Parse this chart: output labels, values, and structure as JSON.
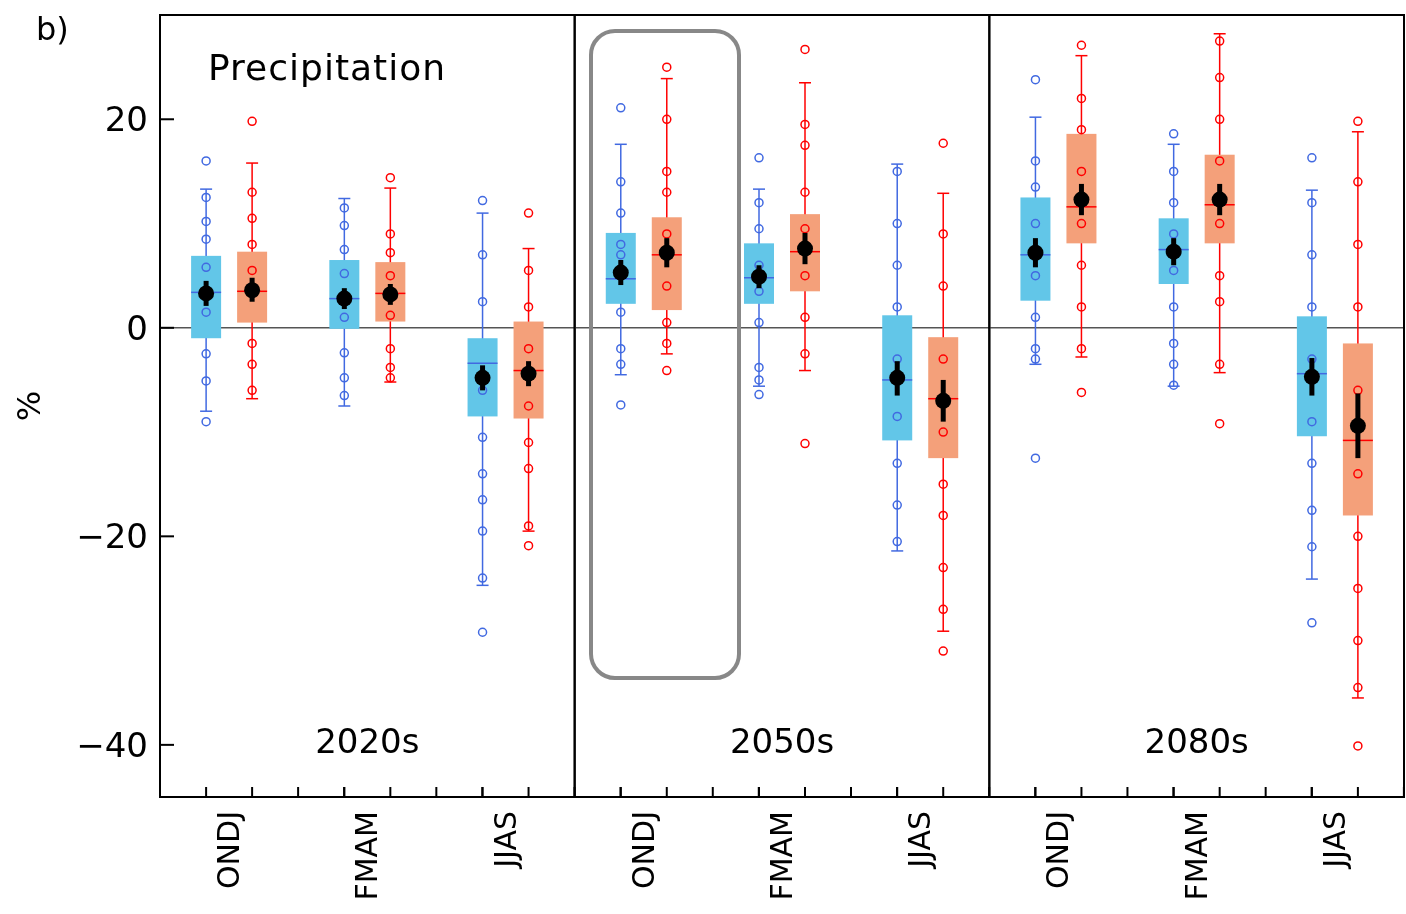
{
  "chart_data": [
    {
      "type": "box",
      "title": "2020s",
      "ylabel": "%",
      "annotations": [
        "b)",
        "Precipitation"
      ],
      "categories": [
        "ONDJ",
        "FMAM",
        "JJAS"
      ],
      "ylim": [
        -45,
        30
      ],
      "yticks": [
        -40,
        -20,
        0,
        20
      ],
      "ref_lines": [
        {
          "axis": "y",
          "value": 0,
          "color": "#555555"
        }
      ],
      "grid": false,
      "marker": "circle",
      "series": [
        {
          "color": "#4169e1",
          "colors": [
            "#62c6e8",
            "#62c6e8",
            "#62c6e8"
          ],
          "boxes": [
            {
              "low": -8.0,
              "q1": -1.0,
              "median": 3.4,
              "q3": 6.9,
              "high": 13.3,
              "outliers": [
                16.0,
                12.5,
                10.2,
                8.5,
                5.8,
                1.5,
                -2.5,
                -5.1,
                -9.0
              ]
            },
            {
              "low": -7.5,
              "q1": -0.1,
              "median": 2.8,
              "q3": 6.5,
              "high": 12.4,
              "outliers": [
                11.5,
                9.8,
                7.5,
                5.2,
                1.0,
                -2.4,
                -4.8,
                -6.5
              ]
            },
            {
              "low": -24.7,
              "q1": -8.5,
              "median": -3.4,
              "q3": -1.0,
              "high": 11.0,
              "outliers": [
                12.2,
                7.0,
                2.5,
                -6.0,
                -10.5,
                -14.0,
                -16.5,
                -19.5,
                -24.0,
                -29.2
              ]
            }
          ]
        },
        {
          "color": "#ff0000",
          "colors": [
            "#f4a07a",
            "#f4a07a",
            "#f4a07a"
          ],
          "boxes": [
            {
              "low": -6.8,
              "q1": 0.5,
              "median": 3.5,
              "q3": 7.3,
              "high": 15.8,
              "outliers": [
                19.8,
                13.0,
                10.5,
                8.0,
                5.5,
                -1.5,
                -3.5,
                -6.0
              ]
            },
            {
              "low": -5.2,
              "q1": 0.6,
              "median": 3.3,
              "q3": 6.3,
              "high": 13.4,
              "outliers": [
                14.4,
                9.0,
                7.2,
                5.0,
                1.2,
                -2.0,
                -3.8,
                -4.8
              ]
            },
            {
              "low": -19.5,
              "q1": -8.7,
              "median": -4.1,
              "q3": 0.6,
              "high": 7.6,
              "outliers": [
                11.0,
                5.5,
                2.0,
                -2.0,
                -7.5,
                -11.0,
                -13.5,
                -19.0,
                -20.9
              ]
            }
          ]
        },
        {
          "type": "scatter",
          "color": "#000000",
          "x": [
            "ONDJ",
            "FMAM",
            "JJAS"
          ],
          "values": [
            3.3,
            2.8,
            -4.8
          ],
          "errors": [
            [
              2.1,
              4.5
            ],
            [
              1.8,
              3.8
            ],
            [
              -6.0,
              -3.6
            ]
          ]
        },
        {
          "type": "scatter",
          "color": "#000000",
          "x": [
            "ONDJ",
            "FMAM",
            "JJAS"
          ],
          "values": [
            3.6,
            3.2,
            -4.4
          ],
          "errors": [
            [
              2.5,
              4.8
            ],
            [
              2.2,
              4.2
            ],
            [
              -5.6,
              -3.2
            ]
          ]
        }
      ]
    },
    {
      "type": "box",
      "title": "2050s",
      "tick_labels": "x",
      "categories": [
        "ONDJ",
        "FMAM",
        "JJAS"
      ],
      "ylim": [
        -45,
        30
      ],
      "yticks": [
        -40,
        -20,
        0,
        20
      ],
      "ref_lines": [
        {
          "axis": "y",
          "value": 0,
          "color": "#555555"
        }
      ],
      "grid": false,
      "marker": "circle",
      "series": [
        {
          "color": "#4169e1",
          "colors": [
            "#62c6e8",
            "#62c6e8",
            "#62c6e8"
          ],
          "boxes": [
            {
              "low": -4.5,
              "q1": 2.3,
              "median": 4.7,
              "q3": 9.1,
              "high": 17.6,
              "outliers": [
                21.1,
                14.0,
                11.0,
                8.0,
                7.0,
                1.5,
                -2.0,
                -3.5,
                -7.4
              ]
            },
            {
              "low": -5.6,
              "q1": 2.3,
              "median": 4.8,
              "q3": 8.1,
              "high": 13.3,
              "outliers": [
                16.3,
                12.0,
                9.5,
                6.0,
                3.5,
                0.5,
                -3.8,
                -5.0,
                -6.4
              ]
            },
            {
              "low": -21.4,
              "q1": -10.8,
              "median": -5.0,
              "q3": 1.2,
              "high": 15.7,
              "outliers": [
                15.0,
                10.0,
                6.0,
                2.0,
                -3.0,
                -8.5,
                -13.0,
                -17.0,
                -20.5
              ]
            }
          ]
        },
        {
          "color": "#ff0000",
          "colors": [
            "#f4a07a",
            "#f4a07a",
            "#f4a07a"
          ],
          "boxes": [
            {
              "low": -2.5,
              "q1": 1.7,
              "median": 7.0,
              "q3": 10.6,
              "high": 23.9,
              "outliers": [
                25.0,
                20.0,
                15.0,
                13.0,
                9.0,
                4.0,
                0.5,
                -1.5,
                -4.1
              ]
            },
            {
              "low": -4.1,
              "q1": 3.5,
              "median": 7.3,
              "q3": 10.9,
              "high": 23.5,
              "outliers": [
                26.7,
                19.5,
                17.5,
                13.0,
                9.5,
                5.0,
                1.0,
                -2.5,
                -11.1
              ]
            },
            {
              "low": -29.1,
              "q1": -12.5,
              "median": -6.8,
              "q3": -0.9,
              "high": 12.9,
              "outliers": [
                17.7,
                9.0,
                4.0,
                -3.0,
                -10.0,
                -15.0,
                -18.0,
                -23.0,
                -27.0,
                -31.0
              ]
            }
          ]
        },
        {
          "type": "scatter",
          "color": "#000000",
          "x": [
            "ONDJ",
            "FMAM",
            "JJAS"
          ],
          "values": [
            5.3,
            4.9,
            -4.8
          ],
          "errors": [
            [
              4.1,
              6.5
            ],
            [
              3.8,
              6.0
            ],
            [
              -6.5,
              -3.2
            ]
          ]
        },
        {
          "type": "scatter",
          "color": "#000000",
          "x": [
            "ONDJ",
            "FMAM",
            "JJAS"
          ],
          "values": [
            7.2,
            7.6,
            -7.0
          ],
          "errors": [
            [
              5.8,
              8.6
            ],
            [
              6.1,
              9.1
            ],
            [
              -9.0,
              -5.0
            ]
          ]
        }
      ]
    },
    {
      "type": "box",
      "title": "2080s",
      "tick_labels": "x",
      "categories": [
        "ONDJ",
        "FMAM",
        "JJAS"
      ],
      "ylim": [
        -45,
        30
      ],
      "yticks": [
        -40,
        -20,
        0,
        20
      ],
      "ref_lines": [
        {
          "axis": "y",
          "value": 0,
          "color": "#555555"
        }
      ],
      "grid": false,
      "marker": "circle",
      "series": [
        {
          "color": "#4169e1",
          "colors": [
            "#62c6e8",
            "#62c6e8",
            "#62c6e8"
          ],
          "boxes": [
            {
              "low": -3.5,
              "q1": 2.6,
              "median": 7.0,
              "q3": 12.5,
              "high": 20.2,
              "outliers": [
                23.8,
                16.0,
                13.5,
                10.0,
                5.0,
                1.0,
                -2.0,
                -3.0,
                -12.5
              ]
            },
            {
              "low": -5.6,
              "q1": 4.2,
              "median": 7.5,
              "q3": 10.5,
              "high": 17.6,
              "outliers": [
                18.6,
                15.0,
                12.0,
                9.0,
                5.5,
                2.0,
                -1.5,
                -3.5,
                -5.5
              ]
            },
            {
              "low": -24.1,
              "q1": -10.4,
              "median": -4.4,
              "q3": 1.1,
              "high": 13.2,
              "outliers": [
                16.3,
                12.0,
                7.0,
                2.0,
                -3.0,
                -9.0,
                -13.0,
                -17.5,
                -21.0,
                -28.3
              ]
            }
          ]
        },
        {
          "color": "#ff0000",
          "colors": [
            "#f4a07a",
            "#f4a07a",
            "#f4a07a"
          ],
          "boxes": [
            {
              "low": -2.8,
              "q1": 8.1,
              "median": 11.6,
              "q3": 18.6,
              "high": 26.1,
              "outliers": [
                27.1,
                22.0,
                19.0,
                15.0,
                10.0,
                6.0,
                2.0,
                -2.0,
                -6.2
              ]
            },
            {
              "low": -4.3,
              "q1": 8.1,
              "median": 11.8,
              "q3": 16.6,
              "high": 28.2,
              "outliers": [
                27.5,
                24.0,
                20.0,
                16.0,
                10.0,
                5.0,
                2.5,
                -3.5,
                -9.2
              ]
            },
            {
              "low": -35.5,
              "q1": -18.0,
              "median": -10.8,
              "q3": -1.5,
              "high": 18.8,
              "outliers": [
                19.8,
                14.0,
                8.0,
                2.0,
                -6.0,
                -14.0,
                -20.0,
                -25.0,
                -30.0,
                -34.5,
                -40.1
              ]
            }
          ]
        },
        {
          "type": "scatter",
          "color": "#000000",
          "x": [
            "ONDJ",
            "FMAM",
            "JJAS"
          ],
          "values": [
            7.2,
            7.3,
            -4.7
          ],
          "errors": [
            [
              5.8,
              8.6
            ],
            [
              6.0,
              8.6
            ],
            [
              -6.5,
              -2.9
            ]
          ]
        },
        {
          "type": "scatter",
          "color": "#000000",
          "x": [
            "ONDJ",
            "FMAM",
            "JJAS"
          ],
          "values": [
            12.3,
            12.3,
            -9.4
          ],
          "errors": [
            [
              10.8,
              13.8
            ],
            [
              10.8,
              13.8
            ],
            [
              -12.5,
              -6.3
            ]
          ]
        }
      ]
    }
  ]
}
